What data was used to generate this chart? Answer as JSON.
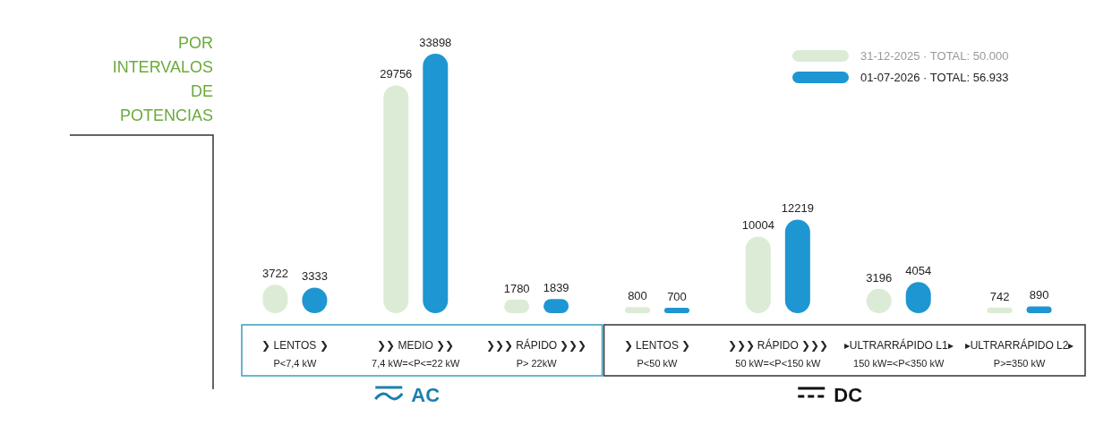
{
  "chart_data": {
    "type": "bar",
    "title": "POR\nINTERVALOS\nDE\nPOTENCIAS",
    "categories": [
      "❯ LENTOS ❯\nP<7,4 kW",
      "❯❯ MEDIO ❯❯\n7,4 kW=<P<=22 kW",
      "❯❯❯ RÁPIDO ❯❯❯\nP> 22kW",
      "❯ LENTOS ❯\nP<50 kW",
      "❯❯❯ RÁPIDO ❯❯❯\n50 kW=<P<150 kW",
      "▸ULTRARRÁPIDO L1▸\n150 kW=<P<350 kW",
      "▸ULTRARRÁPIDO L2▸\nP>=350 kW"
    ],
    "series": [
      {
        "name": "31-12-2025 · TOTAL: 50.000",
        "color": "#dcebd5",
        "values": [
          3722,
          29756,
          1780,
          800,
          10004,
          3196,
          742
        ]
      },
      {
        "name": "01-07-2026 · TOTAL: 56.933",
        "color": "#1e96d2",
        "values": [
          3333,
          33898,
          1839,
          700,
          12219,
          4054,
          890
        ]
      }
    ],
    "data_labels": true,
    "legend": "top right",
    "annotations": [
      "AC",
      "DC"
    ]
  }
}
